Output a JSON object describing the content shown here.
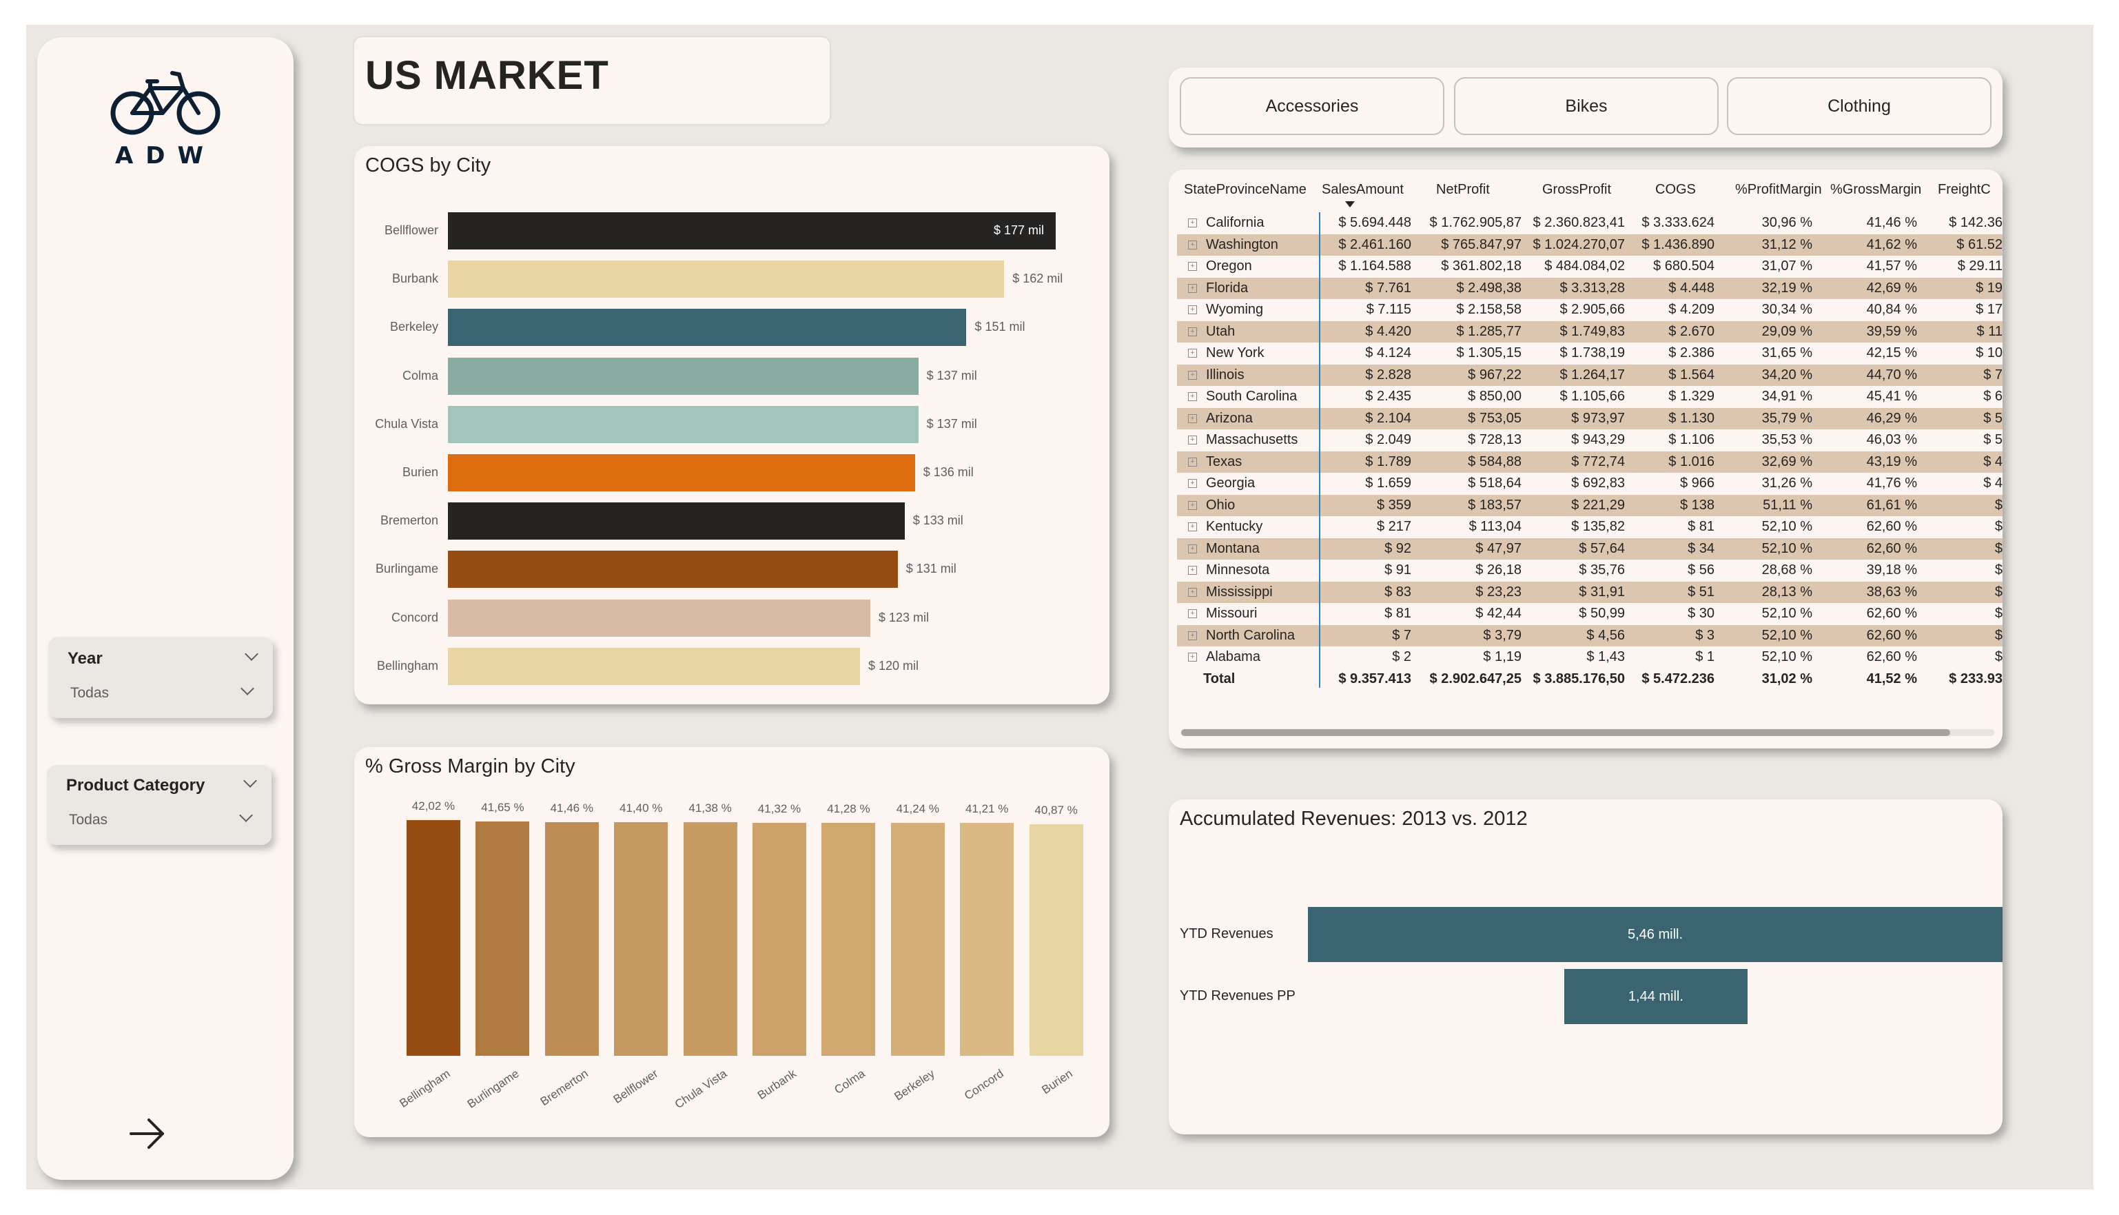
{
  "app": {
    "brand": "ADW"
  },
  "page": {
    "title": "US MARKET"
  },
  "filters": {
    "year": {
      "title": "Year",
      "value": "Todas"
    },
    "product_category": {
      "title": "Product Category",
      "value": "Todas"
    }
  },
  "category_buttons": [
    "Accessories",
    "Bikes",
    "Clothing"
  ],
  "cogs_chart": {
    "title": "COGS by City",
    "chart_data": {
      "type": "bar",
      "orientation": "horizontal",
      "title": "COGS by City",
      "unit": "mil",
      "categories": [
        "Bellflower",
        "Burbank",
        "Berkeley",
        "Colma",
        "Chula Vista",
        "Burien",
        "Bremerton",
        "Burlingame",
        "Concord",
        "Bellingham"
      ],
      "values": [
        177,
        162,
        151,
        137,
        137,
        136,
        133,
        131,
        123,
        120
      ],
      "labels": [
        "$ 177 mil",
        "$ 162 mil",
        "$ 151 mil",
        "$ 137 mil",
        "$ 137 mil",
        "$ 136 mil",
        "$ 133 mil",
        "$ 131 mil",
        "$ 123 mil",
        "$ 120 mil"
      ],
      "colors": [
        "#252423",
        "#e8d5a4",
        "#3a6570",
        "#8aaba1",
        "#a2c5bb",
        "#dd6b10",
        "#252423",
        "#974c11",
        "#d7bba3",
        "#e8d5a4"
      ],
      "xlim": [
        0,
        177
      ]
    }
  },
  "gm_chart": {
    "title": "% Gross Margin by City",
    "chart_data": {
      "type": "bar",
      "orientation": "vertical",
      "title": "% Gross Margin by City",
      "categories": [
        "Bellingham",
        "Burlingame",
        "Bremerton",
        "Bellflower",
        "Chula Vista",
        "Burbank",
        "Colma",
        "Berkeley",
        "Concord",
        "Burien"
      ],
      "values": [
        42.02,
        41.65,
        41.46,
        41.4,
        41.38,
        41.32,
        41.28,
        41.24,
        41.21,
        40.87
      ],
      "labels": [
        "42,02 %",
        "41,65 %",
        "41,46 %",
        "41,40 %",
        "41,38 %",
        "41,32 %",
        "41,28 %",
        "41,24 %",
        "41,21 %",
        "40,87 %"
      ],
      "colors": [
        "#974c11",
        "#b07940",
        "#be8d55",
        "#c59861",
        "#c89b62",
        "#cca26a",
        "#d0a86f",
        "#d4ae76",
        "#d9b884",
        "#e8d5a4"
      ],
      "ylim": [
        0,
        42.02
      ]
    }
  },
  "table": {
    "columns": [
      "StateProvinceName",
      "SalesAmount",
      "NetProfit",
      "GrossProfit",
      "COGS",
      "%ProfitMargin",
      "%GrossMargin",
      "FreightC"
    ],
    "rows": [
      [
        "California",
        "$ 5.694.448",
        "$ 1.762.905,87",
        "$ 2.360.823,41",
        "$ 3.333.624",
        "30,96 %",
        "41,46 %",
        "$ 142.36"
      ],
      [
        "Washington",
        "$ 2.461.160",
        "$ 765.847,97",
        "$ 1.024.270,07",
        "$ 1.436.890",
        "31,12 %",
        "41,62 %",
        "$ 61.52"
      ],
      [
        "Oregon",
        "$ 1.164.588",
        "$ 361.802,18",
        "$ 484.084,02",
        "$ 680.504",
        "31,07 %",
        "41,57 %",
        "$ 29.11"
      ],
      [
        "Florida",
        "$ 7.761",
        "$ 2.498,38",
        "$ 3.313,28",
        "$ 4.448",
        "32,19 %",
        "42,69 %",
        "$ 19"
      ],
      [
        "Wyoming",
        "$ 7.115",
        "$ 2.158,58",
        "$ 2.905,66",
        "$ 4.209",
        "30,34 %",
        "40,84 %",
        "$ 17"
      ],
      [
        "Utah",
        "$ 4.420",
        "$ 1.285,77",
        "$ 1.749,83",
        "$ 2.670",
        "29,09 %",
        "39,59 %",
        "$ 11"
      ],
      [
        "New York",
        "$ 4.124",
        "$ 1.305,15",
        "$ 1.738,19",
        "$ 2.386",
        "31,65 %",
        "42,15 %",
        "$ 10"
      ],
      [
        "Illinois",
        "$ 2.828",
        "$ 967,22",
        "$ 1.264,17",
        "$ 1.564",
        "34,20 %",
        "44,70 %",
        "$ 7"
      ],
      [
        "South Carolina",
        "$ 2.435",
        "$ 850,00",
        "$ 1.105,66",
        "$ 1.329",
        "34,91 %",
        "45,41 %",
        "$ 6"
      ],
      [
        "Arizona",
        "$ 2.104",
        "$ 753,05",
        "$ 973,97",
        "$ 1.130",
        "35,79 %",
        "46,29 %",
        "$ 5"
      ],
      [
        "Massachusetts",
        "$ 2.049",
        "$ 728,13",
        "$ 943,29",
        "$ 1.106",
        "35,53 %",
        "46,03 %",
        "$ 5"
      ],
      [
        "Texas",
        "$ 1.789",
        "$ 584,88",
        "$ 772,74",
        "$ 1.016",
        "32,69 %",
        "43,19 %",
        "$ 4"
      ],
      [
        "Georgia",
        "$ 1.659",
        "$ 518,64",
        "$ 692,83",
        "$ 966",
        "31,26 %",
        "41,76 %",
        "$ 4"
      ],
      [
        "Ohio",
        "$ 359",
        "$ 183,57",
        "$ 221,29",
        "$ 138",
        "51,11 %",
        "61,61 %",
        "$"
      ],
      [
        "Kentucky",
        "$ 217",
        "$ 113,04",
        "$ 135,82",
        "$ 81",
        "52,10 %",
        "62,60 %",
        "$"
      ],
      [
        "Montana",
        "$ 92",
        "$ 47,97",
        "$ 57,64",
        "$ 34",
        "52,10 %",
        "62,60 %",
        "$"
      ],
      [
        "Minnesota",
        "$ 91",
        "$ 26,18",
        "$ 35,76",
        "$ 56",
        "28,68 %",
        "39,18 %",
        "$"
      ],
      [
        "Mississippi",
        "$ 83",
        "$ 23,23",
        "$ 31,91",
        "$ 51",
        "28,13 %",
        "38,63 %",
        "$"
      ],
      [
        "Missouri",
        "$ 81",
        "$ 42,44",
        "$ 50,99",
        "$ 30",
        "52,10 %",
        "62,60 %",
        "$"
      ],
      [
        "North Carolina",
        "$ 7",
        "$ 3,79",
        "$ 4,56",
        "$ 3",
        "52,10 %",
        "62,60 %",
        "$"
      ],
      [
        "Alabama",
        "$ 2",
        "$ 1,19",
        "$ 1,43",
        "$ 1",
        "52,10 %",
        "62,60 %",
        "$"
      ]
    ],
    "total": [
      "Total",
      "$ 9.357.413",
      "$ 2.902.647,25",
      "$ 3.885.176,50",
      "$ 5.472.236",
      "31,02 %",
      "41,52 %",
      "$ 233.93"
    ],
    "expand_glyph": "⊞"
  },
  "acc_chart": {
    "title": "Accumulated Revenues: 2013 vs. 2012",
    "chart_data": {
      "type": "bar",
      "orientation": "horizontal",
      "title": "Accumulated Revenues: 2013 vs. 2012",
      "categories": [
        "YTD Revenues",
        "YTD Revenues PP"
      ],
      "values": [
        5.46,
        1.44
      ],
      "labels": [
        "5,46 mill.",
        "1,44 mill."
      ],
      "color": "#3a6570"
    }
  }
}
